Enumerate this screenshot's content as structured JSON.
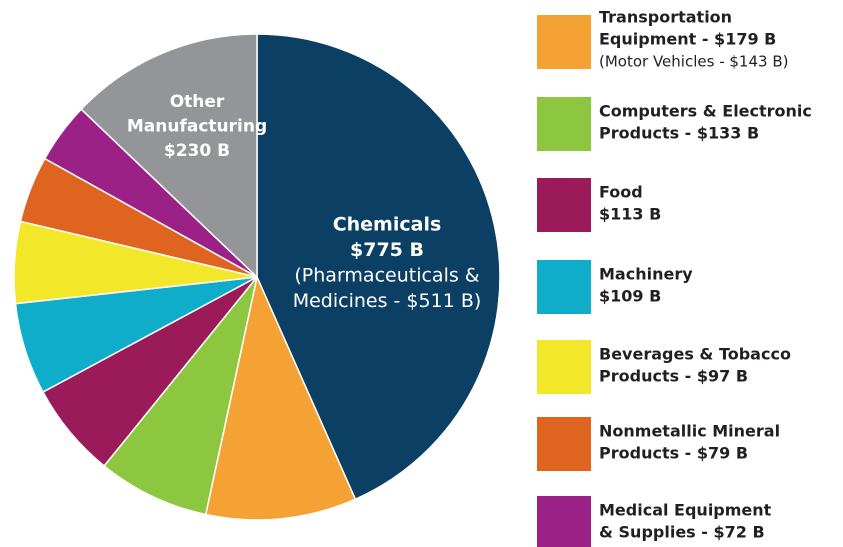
{
  "chart_data": {
    "type": "pie",
    "categories": [
      "Chemicals",
      "Transportation Equipment",
      "Computers & Electronic Products",
      "Food",
      "Machinery",
      "Beverages & Tobacco Products",
      "Nonmetallic Mineral Products",
      "Medical Equipment & Supplies",
      "Other Manufacturing"
    ],
    "values": [
      775,
      179,
      133,
      113,
      109,
      97,
      79,
      72,
      230
    ],
    "colors": [
      "#0b3f63",
      "#f4a233",
      "#8dc63f",
      "#9b1b5a",
      "#0fadc9",
      "#f2e829",
      "#de6420",
      "#9b2186",
      "#939598"
    ],
    "slice_labels": [
      {
        "slice": 0,
        "lines": [
          "Chemicals",
          "$775 B"
        ],
        "note": [
          "(Pharmaceuticals &",
          "Medicines - $511 B)"
        ]
      },
      {
        "slice": 8,
        "lines": [
          "Other",
          "Manufacturing",
          "$230 B"
        ]
      }
    ],
    "legend": [
      {
        "slice": 1,
        "lines": [
          "Transportation",
          "Equipment - $179 B"
        ],
        "note": "(Motor Vehicles - $143 B)"
      },
      {
        "slice": 2,
        "lines": [
          "Computers & Electronic",
          "Products - $133 B"
        ]
      },
      {
        "slice": 3,
        "lines": [
          "Food",
          "$113 B"
        ]
      },
      {
        "slice": 4,
        "lines": [
          "Machinery",
          "$109 B"
        ]
      },
      {
        "slice": 5,
        "lines": [
          "Beverages & Tobacco",
          "Products - $97 B"
        ]
      },
      {
        "slice": 6,
        "lines": [
          "Nonmetallic Mineral",
          "Products - $79 B"
        ]
      },
      {
        "slice": 7,
        "lines": [
          "Medical Equipment",
          "& Supplies - $72 B"
        ]
      }
    ]
  }
}
